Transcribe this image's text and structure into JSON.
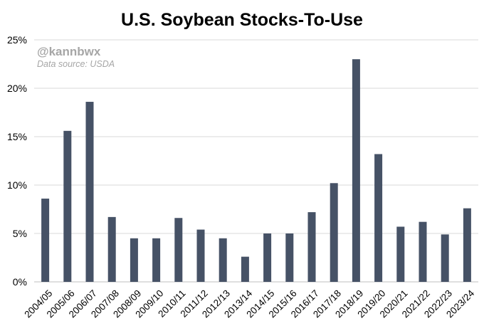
{
  "header": {
    "title": "U.S. Soybean Stocks-To-Use",
    "handle": "@kannbwx",
    "source": "Data source: USDA"
  },
  "chart_data": {
    "type": "bar",
    "title": "U.S. Soybean Stocks-To-Use",
    "xlabel": "",
    "ylabel": "",
    "ylim": [
      0,
      25
    ],
    "yticks": [
      "0%",
      "5%",
      "10%",
      "15%",
      "20%",
      "25%"
    ],
    "grid": true,
    "bar_color": "#465266",
    "grid_color": "#d9d9d9",
    "categories": [
      "2004/05",
      "2005/06",
      "2006/07",
      "2007/08",
      "2008/09",
      "2009/10",
      "2010/11",
      "2011/12",
      "2012/13",
      "2013/14",
      "2014/15",
      "2015/16",
      "2016/17",
      "2017/18",
      "2018/19",
      "2019/20",
      "2020/21",
      "2021/22",
      "2022/23",
      "2023/24"
    ],
    "values": [
      8.6,
      15.6,
      18.6,
      6.7,
      4.5,
      4.5,
      6.6,
      5.4,
      4.5,
      2.6,
      5.0,
      5.0,
      7.2,
      10.2,
      23.0,
      13.2,
      5.7,
      6.2,
      4.9,
      7.6
    ]
  }
}
